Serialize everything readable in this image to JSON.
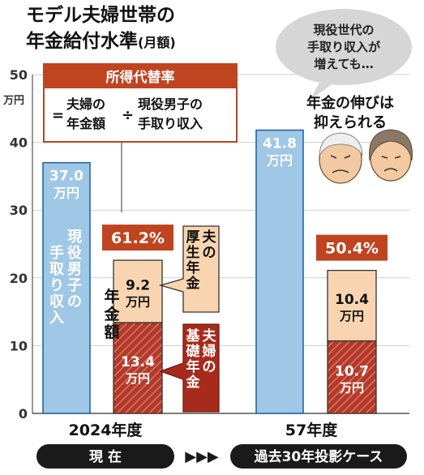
{
  "title": [
    "モデル夫婦世帯の",
    "年金給付水準",
    "(月額)"
  ],
  "unit": "万円",
  "colors": {
    "blue": "#9fc7e6",
    "blue_stroke": "#1d5fa0",
    "peach": "#f8d5b0",
    "red_fill": "#c0392b",
    "red_text": "#c0441f",
    "dark": "#1a1a1a",
    "grid": "#cfcfcf"
  },
  "definition_box": {
    "heading": "所得代替率",
    "eq": "=",
    "numerator": [
      "夫婦の",
      "年金額"
    ],
    "div": "÷",
    "denominator": [
      "現役男子の",
      "手取り収入"
    ]
  },
  "bubble": {
    "lines": [
      "現役世代の",
      "手取り収入が",
      "増えても…"
    ]
  },
  "conclusion": [
    "年金の伸びは",
    "抑えられる"
  ],
  "labels": {
    "male_income": [
      "現役男子の",
      "手取り収入"
    ],
    "pension_amount": [
      "年金額"
    ],
    "kosei": [
      "夫の",
      "厚生年金"
    ],
    "kiso": [
      "夫婦の",
      "基礎年金"
    ]
  },
  "timeline": {
    "now": "現 在",
    "arrows": "▶▶▶",
    "future": "過去30年投影ケース"
  },
  "chart_data": {
    "type": "bar",
    "ylim": [
      0,
      50
    ],
    "yticks": [
      0,
      10,
      20,
      30,
      40,
      50
    ],
    "ylabel": "万円",
    "grid": true,
    "groups": [
      {
        "name": "2024年度",
        "income": 37.0,
        "income_label": [
          "37.0",
          "万円"
        ],
        "kiso": 13.4,
        "kiso_label": [
          "13.4",
          "万円"
        ],
        "kosei": 9.2,
        "kosei_label": [
          "9.2",
          "万円"
        ],
        "ratio": "61.2%"
      },
      {
        "name": "57年度",
        "income": 41.8,
        "income_label": [
          "41.8",
          "万円"
        ],
        "kiso": 10.7,
        "kiso_label": [
          "10.7",
          "万円"
        ],
        "kosei": 10.4,
        "kosei_label": [
          "10.4",
          "万円"
        ],
        "ratio": "50.4%"
      }
    ]
  }
}
